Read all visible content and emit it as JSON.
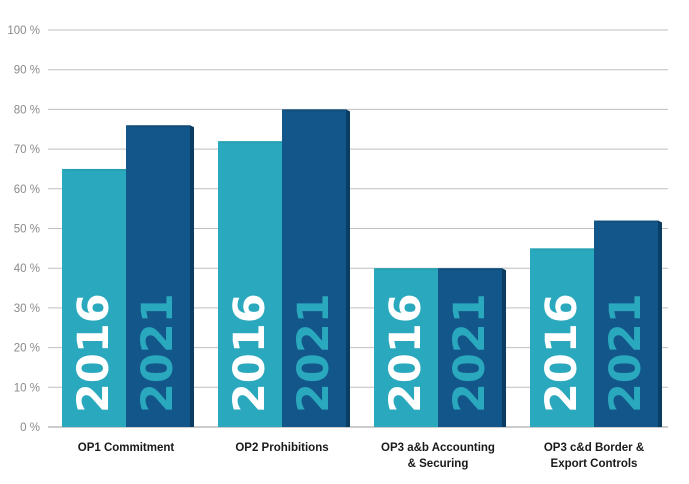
{
  "chart_data": {
    "type": "bar",
    "categories": [
      [
        "OP1 Commitment"
      ],
      [
        "OP2 Prohibitions"
      ],
      [
        "OP3 a&b Accounting",
        "& Securing"
      ],
      [
        "OP3 c&d Border &",
        "Export Controls"
      ]
    ],
    "series": [
      {
        "name": "2016",
        "values": [
          65,
          72,
          40,
          45
        ],
        "color": "#2aa8bd",
        "side_color": "#1f8e9f",
        "label_color": "#ffffff"
      },
      {
        "name": "2021",
        "values": [
          76,
          80,
          40,
          52
        ],
        "color": "#13578a",
        "side_color": "#0b3c62",
        "label_color": "#2aa8bd"
      }
    ],
    "ylim": [
      0,
      100
    ],
    "yticks": [
      0,
      10,
      20,
      30,
      40,
      50,
      60,
      70,
      80,
      90,
      100
    ],
    "ytick_labels": [
      "0 %",
      "10 %",
      "20 %",
      "30 %",
      "40 %",
      "50 %",
      "60 %",
      "70 %",
      "80 %",
      "90 %",
      "100 %"
    ],
    "grid": true,
    "title": "",
    "xlabel": "",
    "ylabel": ""
  }
}
